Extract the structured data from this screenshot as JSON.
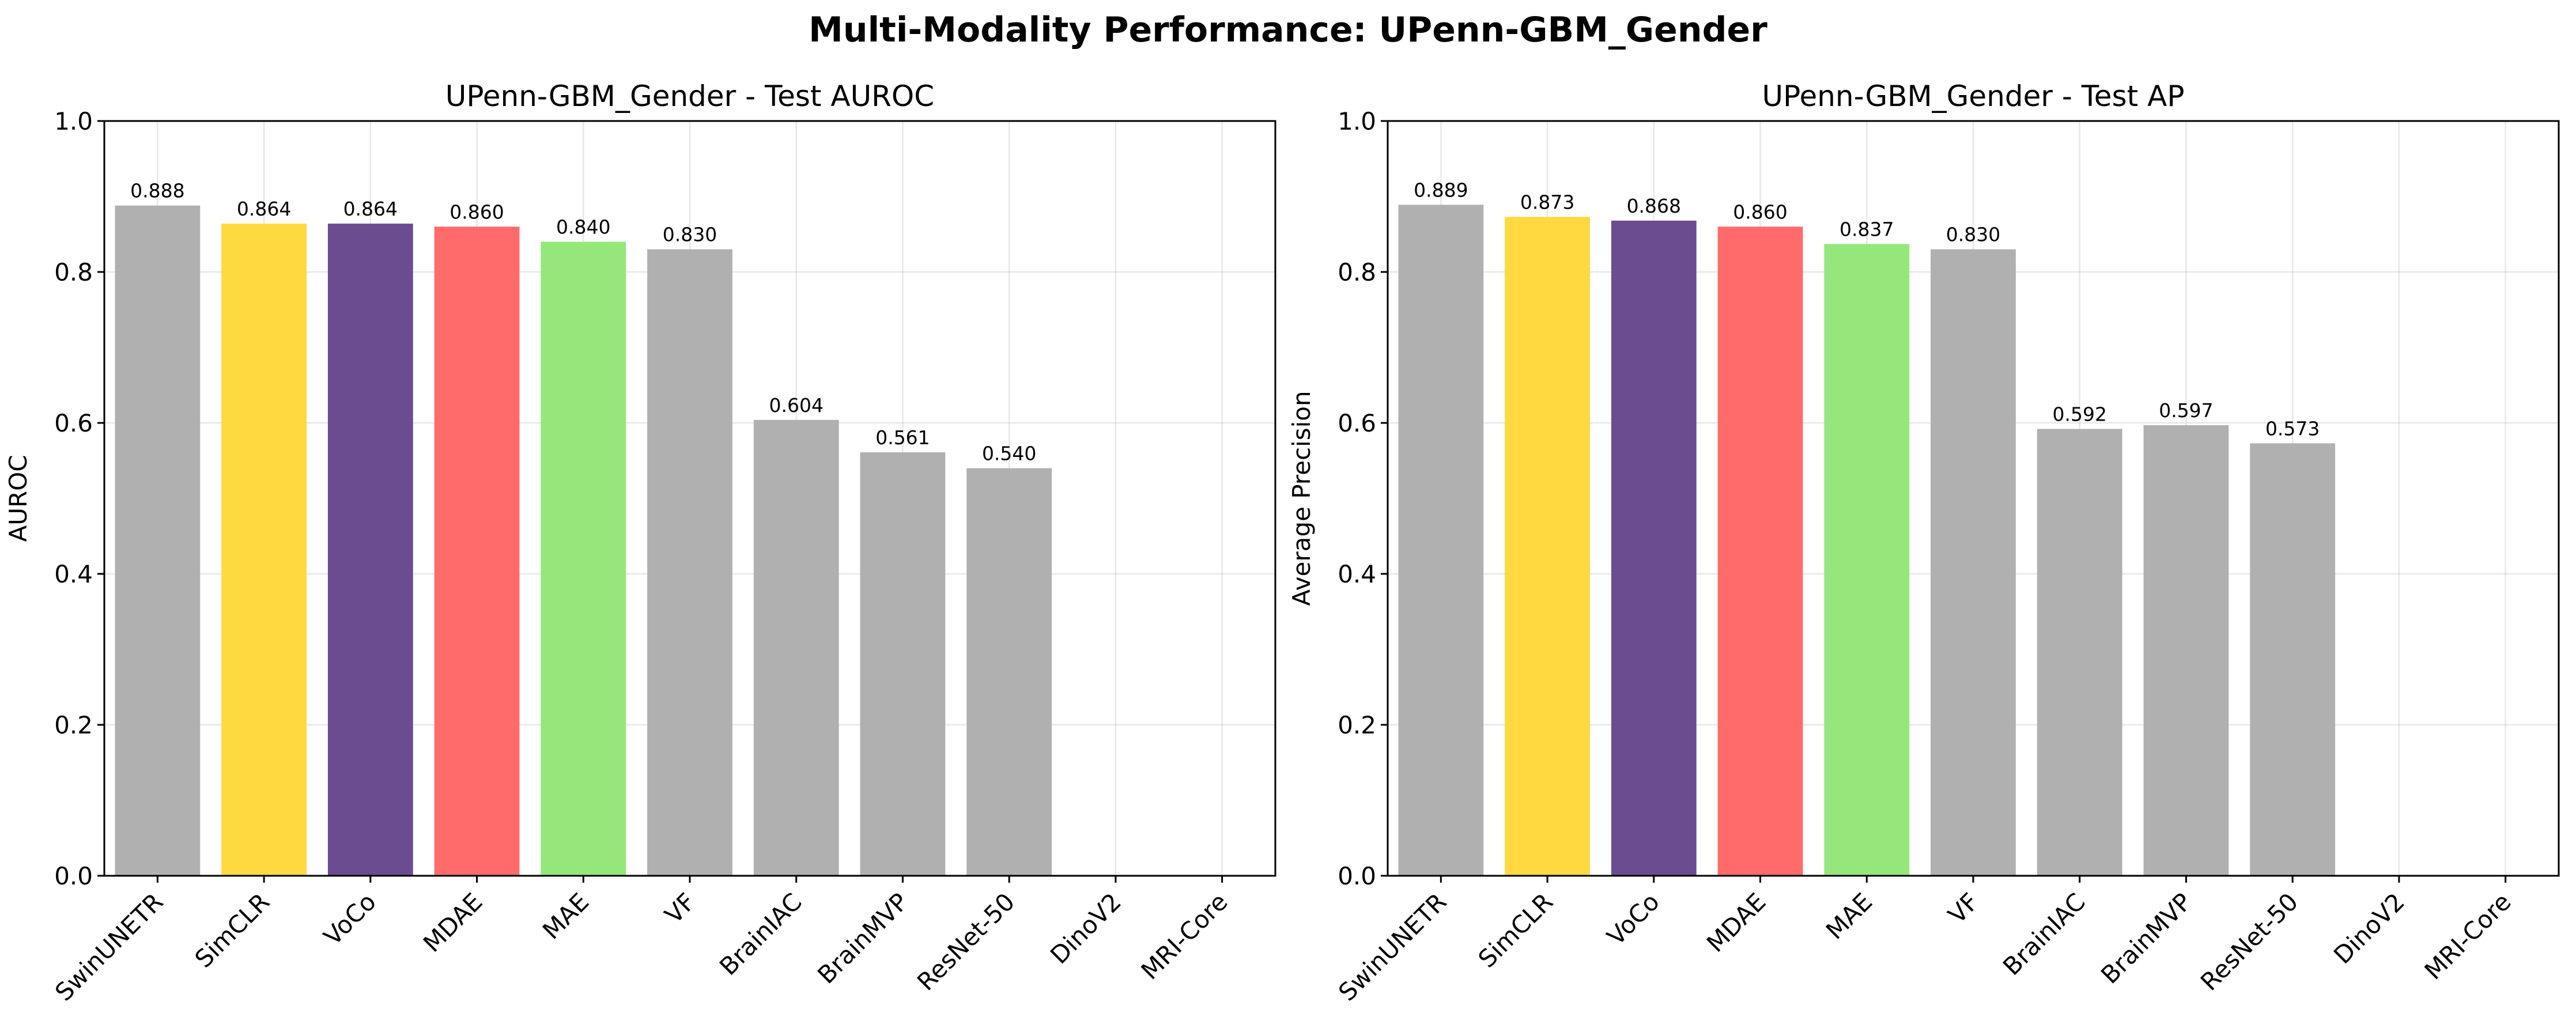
{
  "figure": {
    "title": "Multi-Modality Performance: UPenn-GBM_Gender"
  },
  "chart_data": [
    {
      "type": "bar",
      "title": "UPenn-GBM_Gender - Test AUROC",
      "xlabel": "",
      "ylabel": "AUROC",
      "ylim": [
        0,
        1.0
      ],
      "yticks": [
        "0.0",
        "0.2",
        "0.4",
        "0.6",
        "0.8",
        "1.0"
      ],
      "grid": true,
      "categories": [
        "SwinUNETR",
        "SimCLR",
        "VoCo",
        "MDAE",
        "MAE",
        "VF",
        "BrainIAC",
        "BrainMVP",
        "ResNet-50",
        "DinoV2",
        "MRI-Core"
      ],
      "values": [
        0.888,
        0.864,
        0.864,
        0.86,
        0.84,
        0.83,
        0.604,
        0.561,
        0.54,
        null,
        null
      ],
      "value_labels": [
        "0.888",
        "0.864",
        "0.864",
        "0.860",
        "0.840",
        "0.830",
        "0.604",
        "0.561",
        "0.540",
        "",
        ""
      ],
      "colors": [
        "#b0b0b0",
        "#ffd940",
        "#6b4c90",
        "#ff6b6b",
        "#95e77b",
        "#b0b0b0",
        "#b0b0b0",
        "#b0b0b0",
        "#b0b0b0",
        "#b0b0b0",
        "#b0b0b0"
      ]
    },
    {
      "type": "bar",
      "title": "UPenn-GBM_Gender - Test AP",
      "xlabel": "",
      "ylabel": "Average Precision",
      "ylim": [
        0,
        1.0
      ],
      "yticks": [
        "0.0",
        "0.2",
        "0.4",
        "0.6",
        "0.8",
        "1.0"
      ],
      "grid": true,
      "categories": [
        "SwinUNETR",
        "SimCLR",
        "VoCo",
        "MDAE",
        "MAE",
        "VF",
        "BrainIAC",
        "BrainMVP",
        "ResNet-50",
        "DinoV2",
        "MRI-Core"
      ],
      "values": [
        0.889,
        0.873,
        0.868,
        0.86,
        0.837,
        0.83,
        0.592,
        0.597,
        0.573,
        null,
        null
      ],
      "value_labels": [
        "0.889",
        "0.873",
        "0.868",
        "0.860",
        "0.837",
        "0.830",
        "0.592",
        "0.597",
        "0.573",
        "",
        ""
      ],
      "colors": [
        "#b0b0b0",
        "#ffd940",
        "#6b4c90",
        "#ff6b6b",
        "#95e77b",
        "#b0b0b0",
        "#b0b0b0",
        "#b0b0b0",
        "#b0b0b0",
        "#b0b0b0",
        "#b0b0b0"
      ]
    }
  ]
}
